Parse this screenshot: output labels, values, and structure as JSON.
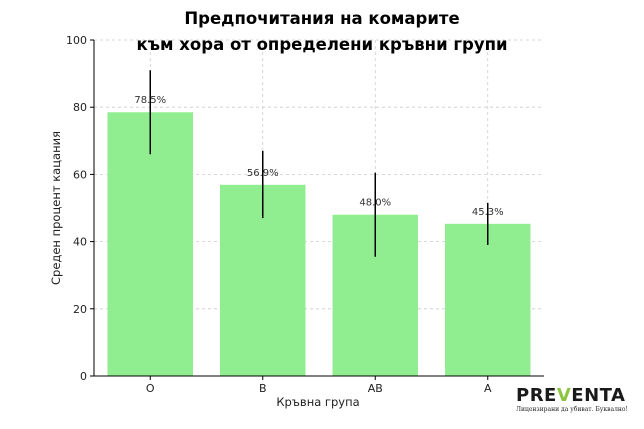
{
  "chart_data": {
    "type": "bar",
    "title_lines": [
      "Предпочитания на комарите",
      "към хора от определени кръвни групи"
    ],
    "xlabel": "Кръвна група",
    "ylabel": "Среден процент кацания",
    "categories": [
      "O",
      "B",
      "AB",
      "A"
    ],
    "values": [
      78.5,
      56.9,
      48.0,
      45.3
    ],
    "value_labels": [
      "78.5%",
      "56.9%",
      "48.0%",
      "45.3%"
    ],
    "error_low": [
      66,
      47,
      35.5,
      39
    ],
    "error_high": [
      91,
      67,
      60.5,
      51.5
    ],
    "ylim": [
      0,
      100
    ],
    "yticks": [
      0,
      20,
      40,
      60,
      80,
      100
    ],
    "grid": true,
    "colors": {
      "bar": "#90ee90",
      "error": "#000000",
      "grid": "#cccccc"
    }
  },
  "logo": {
    "word_start": "PRE",
    "word_accent": "V",
    "word_end": "ENTA",
    "tagline": "Лицензирани да убиват. Буквално!"
  }
}
